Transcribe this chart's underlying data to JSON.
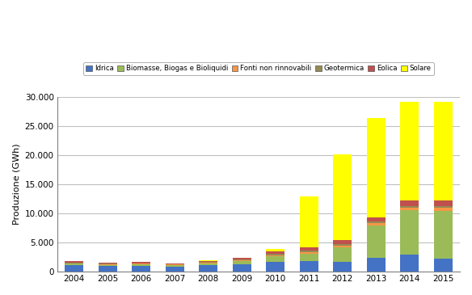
{
  "years": [
    2004,
    2005,
    2006,
    2007,
    2008,
    2009,
    2010,
    2011,
    2012,
    2013,
    2014,
    2015
  ],
  "categories": [
    "Idrica",
    "Biomasse, Biogas e Bioliquidi",
    "Fonti non rinnovabili",
    "Geotermica",
    "Eolica",
    "Solare"
  ],
  "colors": [
    "#4472C4",
    "#9BBB59",
    "#F79646",
    "#948A54",
    "#C0504D",
    "#FFFF00"
  ],
  "data": {
    "Idrica": [
      1050,
      900,
      950,
      850,
      1050,
      1200,
      1700,
      1850,
      1700,
      2300,
      2850,
      2250
    ],
    "Biomasse, Biogas e Bioliquidi": [
      280,
      240,
      270,
      240,
      330,
      520,
      850,
      1200,
      2400,
      5600,
      7700,
      8200
    ],
    "Fonti non rinnovabili": [
      100,
      90,
      90,
      85,
      110,
      160,
      230,
      280,
      350,
      380,
      430,
      450
    ],
    "Geotermica": [
      130,
      115,
      120,
      110,
      130,
      150,
      200,
      220,
      240,
      270,
      300,
      320
    ],
    "Eolica": [
      160,
      140,
      150,
      145,
      230,
      270,
      420,
      620,
      700,
      780,
      900,
      960
    ],
    "Solare": [
      3,
      3,
      3,
      3,
      8,
      60,
      400,
      8700,
      14800,
      17000,
      17000,
      17000
    ]
  },
  "ylabel": "Produzione (GWh)",
  "ylim": [
    0,
    30000
  ],
  "yticks": [
    0,
    5000,
    10000,
    15000,
    20000,
    25000,
    30000
  ],
  "background_color": "#FFFFFF",
  "grid_color": "#C0C0C0"
}
